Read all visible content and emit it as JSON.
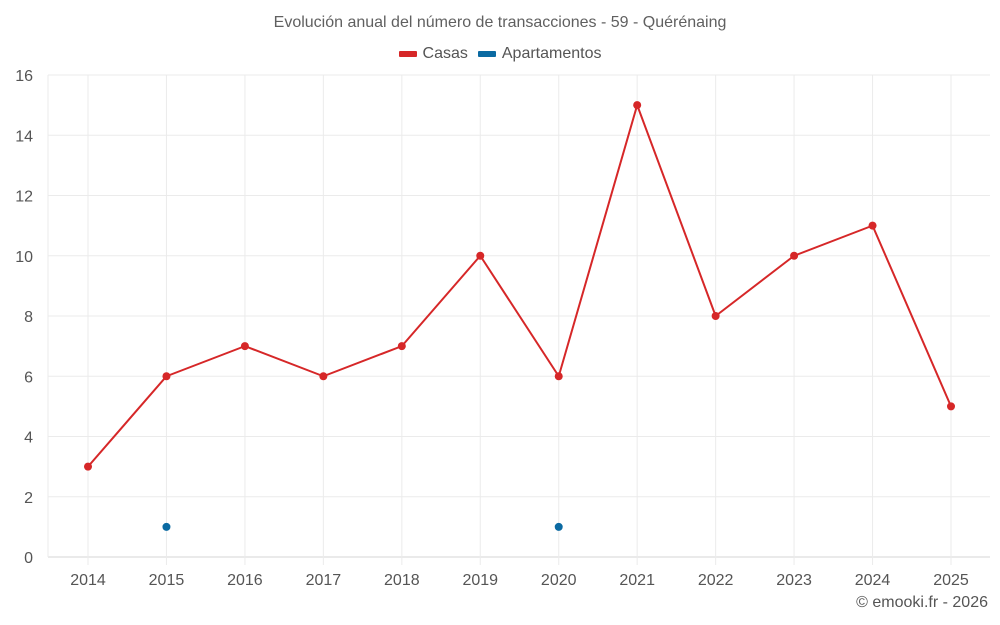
{
  "title": "Evolución anual del número de transacciones - 59 - Quérénaing",
  "legend": [
    {
      "label": "Casas",
      "color": "#d62728"
    },
    {
      "label": "Apartamentos",
      "color": "#0b6aa2"
    }
  ],
  "footer": "© emooki.fr - 2026",
  "chart_data": {
    "type": "line",
    "title": "Evolución anual del número de transacciones - 59 - Quérénaing",
    "xlabel": "",
    "ylabel": "",
    "categories": [
      "2014",
      "2015",
      "2016",
      "2017",
      "2018",
      "2019",
      "2020",
      "2021",
      "2022",
      "2023",
      "2024",
      "2025"
    ],
    "series": [
      {
        "name": "Casas",
        "color": "#d62728",
        "mode": "lines+markers",
        "values": [
          3,
          6,
          7,
          6,
          7,
          10,
          6,
          15,
          8,
          10,
          11,
          5
        ]
      },
      {
        "name": "Apartamentos",
        "color": "#0b6aa2",
        "mode": "markers",
        "values": [
          null,
          1,
          null,
          null,
          null,
          null,
          1,
          null,
          null,
          null,
          null,
          null
        ]
      }
    ],
    "ylim": [
      0,
      16
    ],
    "yticks": [
      0,
      2,
      4,
      6,
      8,
      10,
      12,
      14,
      16
    ],
    "grid": true,
    "legend_position": "top-center"
  }
}
